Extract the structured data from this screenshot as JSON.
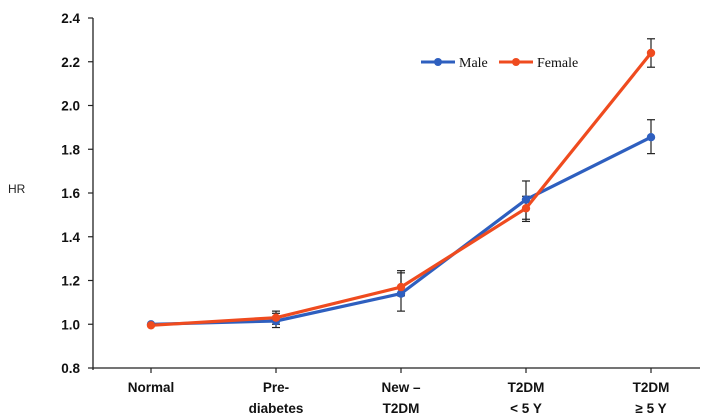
{
  "chart_data": {
    "type": "line",
    "ylabel": "HR",
    "ylim": [
      0.8,
      2.4
    ],
    "yticks": [
      "0.8",
      "1.0",
      "1.2",
      "1.4",
      "1.6",
      "1.8",
      "2.0",
      "2.2",
      "2.4"
    ],
    "categories": [
      [
        "Normal"
      ],
      [
        "Pre-",
        "diabetes"
      ],
      [
        "New –",
        "T2DM"
      ],
      [
        "T2DM",
        "< 5 Y"
      ],
      [
        "T2DM",
        "≥ 5 Y"
      ]
    ],
    "legend_position": "top-right",
    "series": [
      {
        "name": "Male",
        "color": "#2e5fbf",
        "values": [
          1.0,
          1.015,
          1.14,
          1.57,
          1.855
        ],
        "err_low": [
          1.0,
          0.985,
          1.06,
          1.48,
          1.78
        ],
        "err_high": [
          1.0,
          1.05,
          1.235,
          1.655,
          1.935
        ]
      },
      {
        "name": "Female",
        "color": "#ef4b1f",
        "values": [
          0.995,
          1.03,
          1.17,
          1.53,
          2.24
        ],
        "err_low": [
          0.995,
          1.0,
          1.13,
          1.47,
          2.175
        ],
        "err_high": [
          0.995,
          1.06,
          1.245,
          1.585,
          2.305
        ]
      }
    ]
  }
}
